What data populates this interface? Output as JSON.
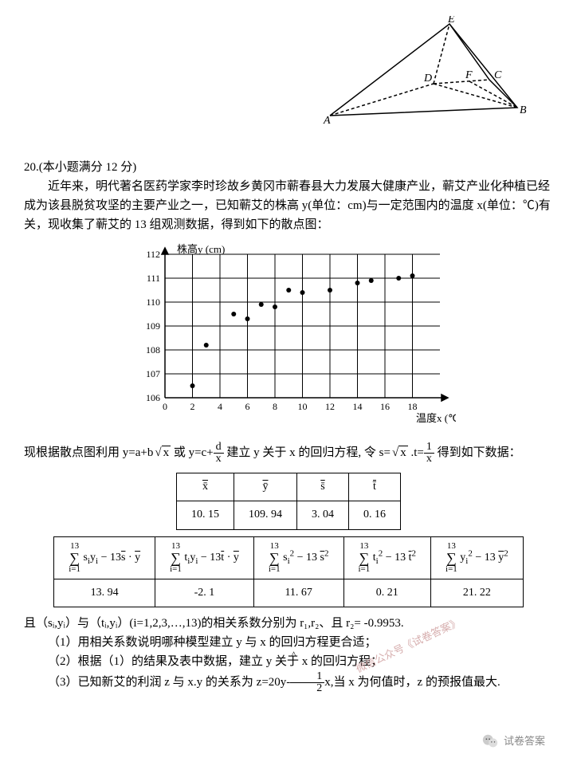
{
  "diagram": {
    "labels": {
      "A": "A",
      "B": "B",
      "C": "C",
      "D": "D",
      "E": "E",
      "F": "F"
    },
    "stroke": "#000"
  },
  "problem": {
    "number_line": "20.(本小题满分 12 分)",
    "para1": "近年来，明代著名医药学家李时珍故乡黄冈市蕲春县大力发展大健康产业，蕲艾产业化种植已经成为该县脱贫攻坚的主要产业之一，已知蕲艾的株高 y(单位：cm)与一定范围内的温度 x(单位：℃)有关，现收集了蕲艾的 13 组观测数据，得到如下的散点图：",
    "eq_para": "现根据散点图利用 y=a+b√x 或 y=c+ d⁄x 建立 y 关于 x 的回归方程, 令 s=√x .t= 1⁄x 得到如下数据：",
    "post_tables": "且（sᵢ,yᵢ）与（tᵢ,yᵢ）(i=1,2,3,…,13)的相关系数分别为 r₁,r₂、且 r₂= -0.9953.",
    "q1": "（1）用相关系数说明哪种模型建立 y 与 x 的回归方程更合适；",
    "q2": "（2）根据（1）的结果及表中数据，建立 ŷ 关于 x 的回归方程；",
    "q3": "（3）已知新艾的利润 z 与 x.y 的关系为 z=20y- ½ x,当 x 为何值时，z 的预报值最大."
  },
  "scatter": {
    "ylabel": "株高y (cm)",
    "xlabel": "温度x (℃)",
    "ylim": [
      106,
      112
    ],
    "yticks": [
      106,
      107,
      108,
      109,
      110,
      111,
      112
    ],
    "xlim": [
      0,
      20
    ],
    "xticks": [
      0,
      2,
      4,
      6,
      8,
      10,
      12,
      14,
      16,
      18
    ],
    "points": [
      [
        2,
        106.5
      ],
      [
        3,
        108.2
      ],
      [
        5,
        109.5
      ],
      [
        6,
        109.3
      ],
      [
        7,
        109.9
      ],
      [
        8,
        109.8
      ],
      [
        9,
        110.5
      ],
      [
        10,
        110.4
      ],
      [
        12,
        110.5
      ],
      [
        14,
        110.8
      ],
      [
        15,
        110.9
      ],
      [
        17,
        111.0
      ],
      [
        18,
        111.1
      ]
    ],
    "grid_color": "#000",
    "bg": "#ffffff",
    "point_color": "#000",
    "point_radius": 3
  },
  "table1": {
    "headers": [
      "x̄",
      "ȳ",
      "s̄",
      "t̄"
    ],
    "values": [
      "10. 15",
      "109. 94",
      "3. 04",
      "0. 16"
    ]
  },
  "table2": {
    "headers": [
      "Σ sᵢyᵢ − 13 s̄·ȳ",
      "Σ tᵢyᵢ − 13 t̄·ȳ",
      "Σ sᵢ² − 13 s̄²",
      "Σ tᵢ² − 13 t̄²",
      "Σ yᵢ² − 13 ȳ²"
    ],
    "sum_top": "13",
    "sum_bot": "i=1",
    "values": [
      "13. 94",
      "-2. 1",
      "11. 67",
      "0. 21",
      "21. 22"
    ]
  },
  "watermark": "微信公众号《试卷答案》",
  "footer_text": "试卷答案"
}
